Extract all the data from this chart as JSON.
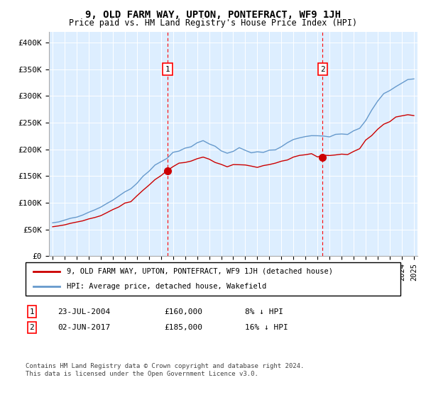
{
  "title": "9, OLD FARM WAY, UPTON, PONTEFRACT, WF9 1JH",
  "subtitle": "Price paid vs. HM Land Registry's House Price Index (HPI)",
  "red_label": "9, OLD FARM WAY, UPTON, PONTEFRACT, WF9 1JH (detached house)",
  "blue_label": "HPI: Average price, detached house, Wakefield",
  "ann1": {
    "num": "1",
    "date": "23-JUL-2004",
    "price": "£160,000",
    "pct": "8% ↓ HPI",
    "x_year": 2004.55,
    "y_val": 160000
  },
  "ann2": {
    "num": "2",
    "date": "02-JUN-2017",
    "price": "£185,000",
    "pct": "16% ↓ HPI",
    "x_year": 2017.42,
    "y_val": 185000
  },
  "ytick_vals": [
    0,
    50000,
    100000,
    150000,
    200000,
    250000,
    300000,
    350000,
    400000
  ],
  "ytick_labels": [
    "£0",
    "£50K",
    "£100K",
    "£150K",
    "£200K",
    "£250K",
    "£300K",
    "£350K",
    "£400K"
  ],
  "ylim": [
    0,
    420000
  ],
  "xlim_start": 1994.7,
  "xlim_end": 2025.3,
  "footer": "Contains HM Land Registry data © Crown copyright and database right 2024.\nThis data is licensed under the Open Government Licence v3.0.",
  "bg_color": "#ddeeff",
  "red_color": "#cc0000",
  "blue_color": "#6699cc",
  "hpi_years": [
    1995,
    1995.5,
    1996,
    1996.5,
    1997,
    1997.5,
    1998,
    1998.5,
    1999,
    1999.5,
    2000,
    2000.5,
    2001,
    2001.5,
    2002,
    2002.5,
    2003,
    2003.5,
    2004,
    2004.5,
    2005,
    2005.5,
    2006,
    2006.5,
    2007,
    2007.5,
    2008,
    2008.5,
    2009,
    2009.5,
    2010,
    2010.5,
    2011,
    2011.5,
    2012,
    2012.5,
    2013,
    2013.5,
    2014,
    2014.5,
    2015,
    2015.5,
    2016,
    2016.5,
    2017,
    2017.5,
    2018,
    2018.5,
    2019,
    2019.5,
    2020,
    2020.5,
    2021,
    2021.5,
    2022,
    2022.5,
    2023,
    2023.5,
    2024,
    2024.5,
    2025
  ],
  "hpi_vals": [
    62000,
    64000,
    67000,
    70000,
    73000,
    77000,
    81000,
    86000,
    92000,
    98000,
    105000,
    113000,
    120000,
    128000,
    138000,
    150000,
    160000,
    170000,
    178000,
    185000,
    192000,
    197000,
    202000,
    207000,
    213000,
    216000,
    212000,
    205000,
    198000,
    193000,
    197000,
    200000,
    198000,
    195000,
    194000,
    196000,
    198000,
    202000,
    207000,
    212000,
    217000,
    221000,
    224000,
    226000,
    228000,
    226000,
    224000,
    226000,
    228000,
    231000,
    234000,
    240000,
    255000,
    272000,
    288000,
    302000,
    312000,
    318000,
    323000,
    328000,
    333000
  ],
  "red_years": [
    1995,
    1995.5,
    1996,
    1996.5,
    1997,
    1997.5,
    1998,
    1998.5,
    1999,
    1999.5,
    2000,
    2000.5,
    2001,
    2001.5,
    2002,
    2002.5,
    2003,
    2003.5,
    2004,
    2004.5,
    2005,
    2005.5,
    2006,
    2006.5,
    2007,
    2007.5,
    2008,
    2008.5,
    2009,
    2009.5,
    2010,
    2010.5,
    2011,
    2011.5,
    2012,
    2012.5,
    2013,
    2013.5,
    2014,
    2014.5,
    2015,
    2015.5,
    2016,
    2016.5,
    2017,
    2017.5,
    2018,
    2018.5,
    2019,
    2019.5,
    2020,
    2020.5,
    2021,
    2021.5,
    2022,
    2022.5,
    2023,
    2023.5,
    2024,
    2024.5,
    2025
  ],
  "red_vals": [
    55000,
    57000,
    59000,
    61000,
    63000,
    66000,
    69000,
    72000,
    76000,
    81000,
    86000,
    92000,
    98000,
    104000,
    112000,
    123000,
    133000,
    143000,
    153000,
    160000,
    167000,
    172000,
    176000,
    179000,
    183000,
    184000,
    181000,
    176000,
    171000,
    167000,
    170000,
    172000,
    171000,
    169000,
    168000,
    169000,
    171000,
    174000,
    178000,
    182000,
    186000,
    189000,
    191000,
    192000,
    185000,
    186000,
    188000,
    189000,
    191000,
    193000,
    196000,
    201000,
    213000,
    226000,
    237000,
    247000,
    254000,
    258000,
    261000,
    263000,
    265000
  ]
}
